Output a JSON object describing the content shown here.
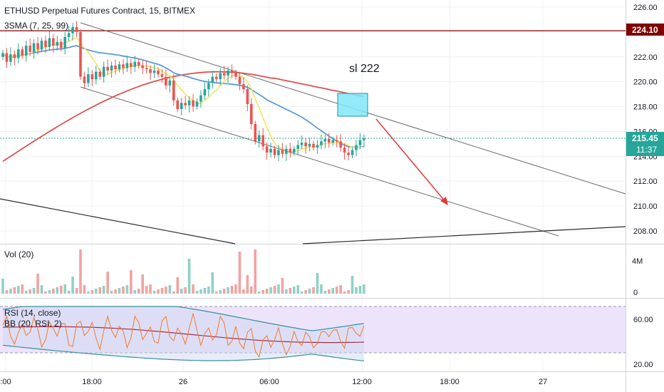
{
  "header": {
    "title": "ETHUSD Perpetual Futures Contract, 15, BITMEX",
    "sma_label": "3SMA (7, 25, 99)",
    "vol_label": "Vol (20)",
    "rsi_label": "RSI (14, close)",
    "bb_label": "BB (20, RSI, 2)"
  },
  "annotation": "sl 222",
  "price_axis": {
    "ticks": [
      "226.00",
      "224.00",
      "222.00",
      "220.00",
      "218.00",
      "216.00",
      "214.00",
      "212.00",
      "210.00",
      "208.00"
    ],
    "resistance_label": "224.10",
    "last_price_label": "215.45",
    "countdown_label": "11:37"
  },
  "vol_axis": {
    "ticks": [
      "4M",
      "0"
    ]
  },
  "rsi_axis": {
    "ticks": [
      "60.00",
      "20.00"
    ]
  },
  "time_axis": {
    "ticks": [
      ":00",
      "18:00",
      "26",
      "06:00",
      "12:00",
      "18:00",
      "27"
    ]
  },
  "colors": {
    "up": "#26a69a",
    "down": "#ef5350",
    "resistance": "#800000",
    "last_price": "#26a69a",
    "sma_fast": "#f2e35a",
    "sma_mid": "#5b9bd5",
    "sma_slow": "#d9534f",
    "box": "#80e8f8",
    "arrow": "#e53935",
    "rsi_bg": "#ede3fb"
  },
  "chart_data": {
    "type": "candlestick",
    "timeframe": "15",
    "price_ylim": [
      207,
      226.5
    ],
    "resistance": 224.1,
    "last_price": 215.45,
    "stop_loss": 222,
    "target_zone": [
      217.3,
      218.9
    ],
    "candles_close": [
      222.3,
      221.6,
      222.2,
      221.9,
      222.6,
      222.1,
      222.9,
      222.4,
      223.1,
      222.6,
      223.3,
      222.8,
      223.5,
      222.9,
      223.2,
      222.7,
      223.6,
      223.9,
      224.4,
      224.0,
      220.4,
      219.9,
      220.6,
      220.2,
      220.8,
      220.4,
      221.2,
      220.9,
      221.3,
      221.0,
      221.4,
      221.1,
      221.5,
      221.2,
      221.6,
      221.3,
      221.1,
      221.0,
      220.7,
      220.9,
      220.6,
      220.4,
      219.7,
      220.1,
      218.5,
      217.8,
      218.3,
      218.1,
      218.5,
      218.0,
      218.4,
      218.9,
      219.4,
      219.9,
      220.4,
      220.2,
      220.7,
      220.5,
      220.9,
      220.7,
      220.4,
      219.8,
      219.4,
      218.2,
      216.6,
      215.2,
      215.7,
      214.8,
      214.3,
      214.6,
      214.1,
      214.5,
      214.2,
      214.6,
      214.3,
      214.6,
      214.9,
      215.1,
      214.8,
      215.0,
      214.7,
      214.9,
      215.2,
      215.4,
      215.1,
      215.3,
      215.2,
      214.7,
      214.3,
      214.1,
      214.5,
      214.9,
      215.3,
      215.45
    ],
    "channel_upper": [
      [
        0,
        224.5
      ],
      [
        93,
        211.0
      ]
    ],
    "channel_lower": [
      [
        0,
        220.4
      ],
      [
        93,
        207.7
      ]
    ]
  }
}
